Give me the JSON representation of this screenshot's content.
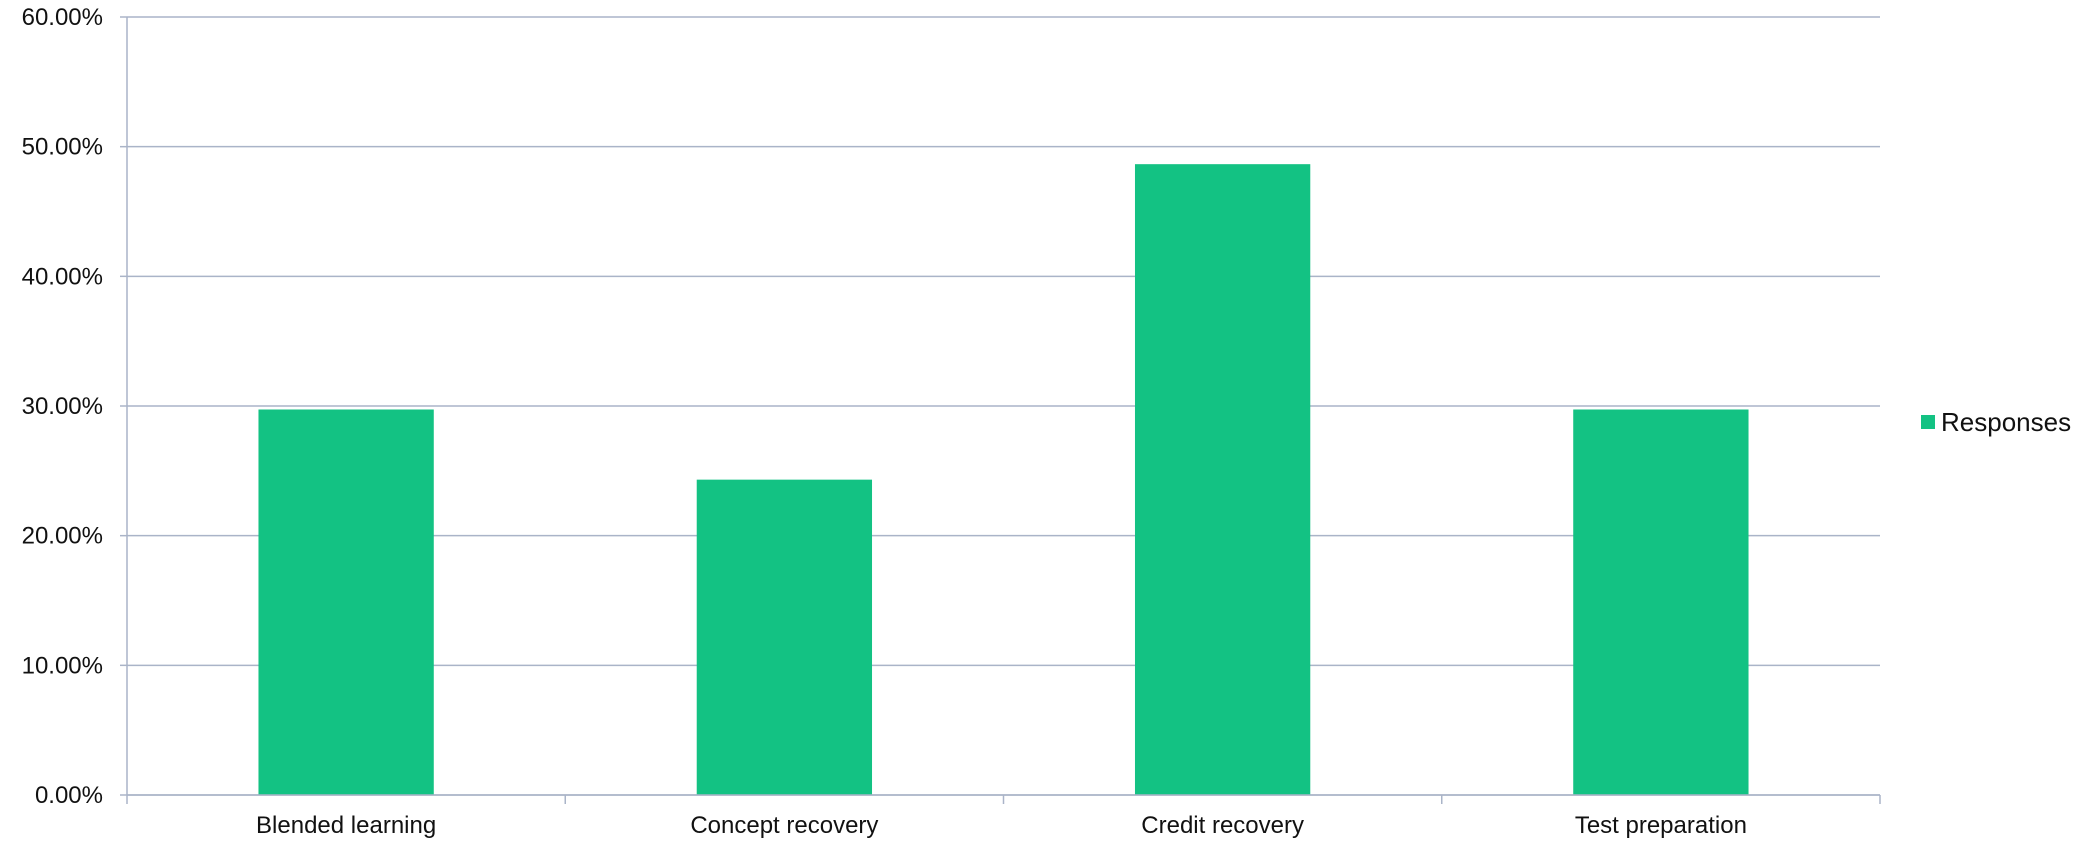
{
  "chart_data": {
    "type": "bar",
    "categories": [
      "Blended learning",
      "Concept recovery",
      "Credit recovery",
      "Test preparation"
    ],
    "series": [
      {
        "name": "Responses",
        "values": [
          29.73,
          24.32,
          48.65,
          29.73
        ],
        "color": "#13c283"
      }
    ],
    "ylim": [
      0,
      60
    ],
    "ytick_values": [
      0,
      10,
      20,
      30,
      40,
      50,
      60
    ],
    "yticks": [
      "0.00%",
      "10.00%",
      "20.00%",
      "30.00%",
      "40.00%",
      "50.00%",
      "60.00%"
    ],
    "grid": true,
    "grid_color": "#aab4c8",
    "axis_color": "#aab4c8",
    "legend_position": "right"
  }
}
